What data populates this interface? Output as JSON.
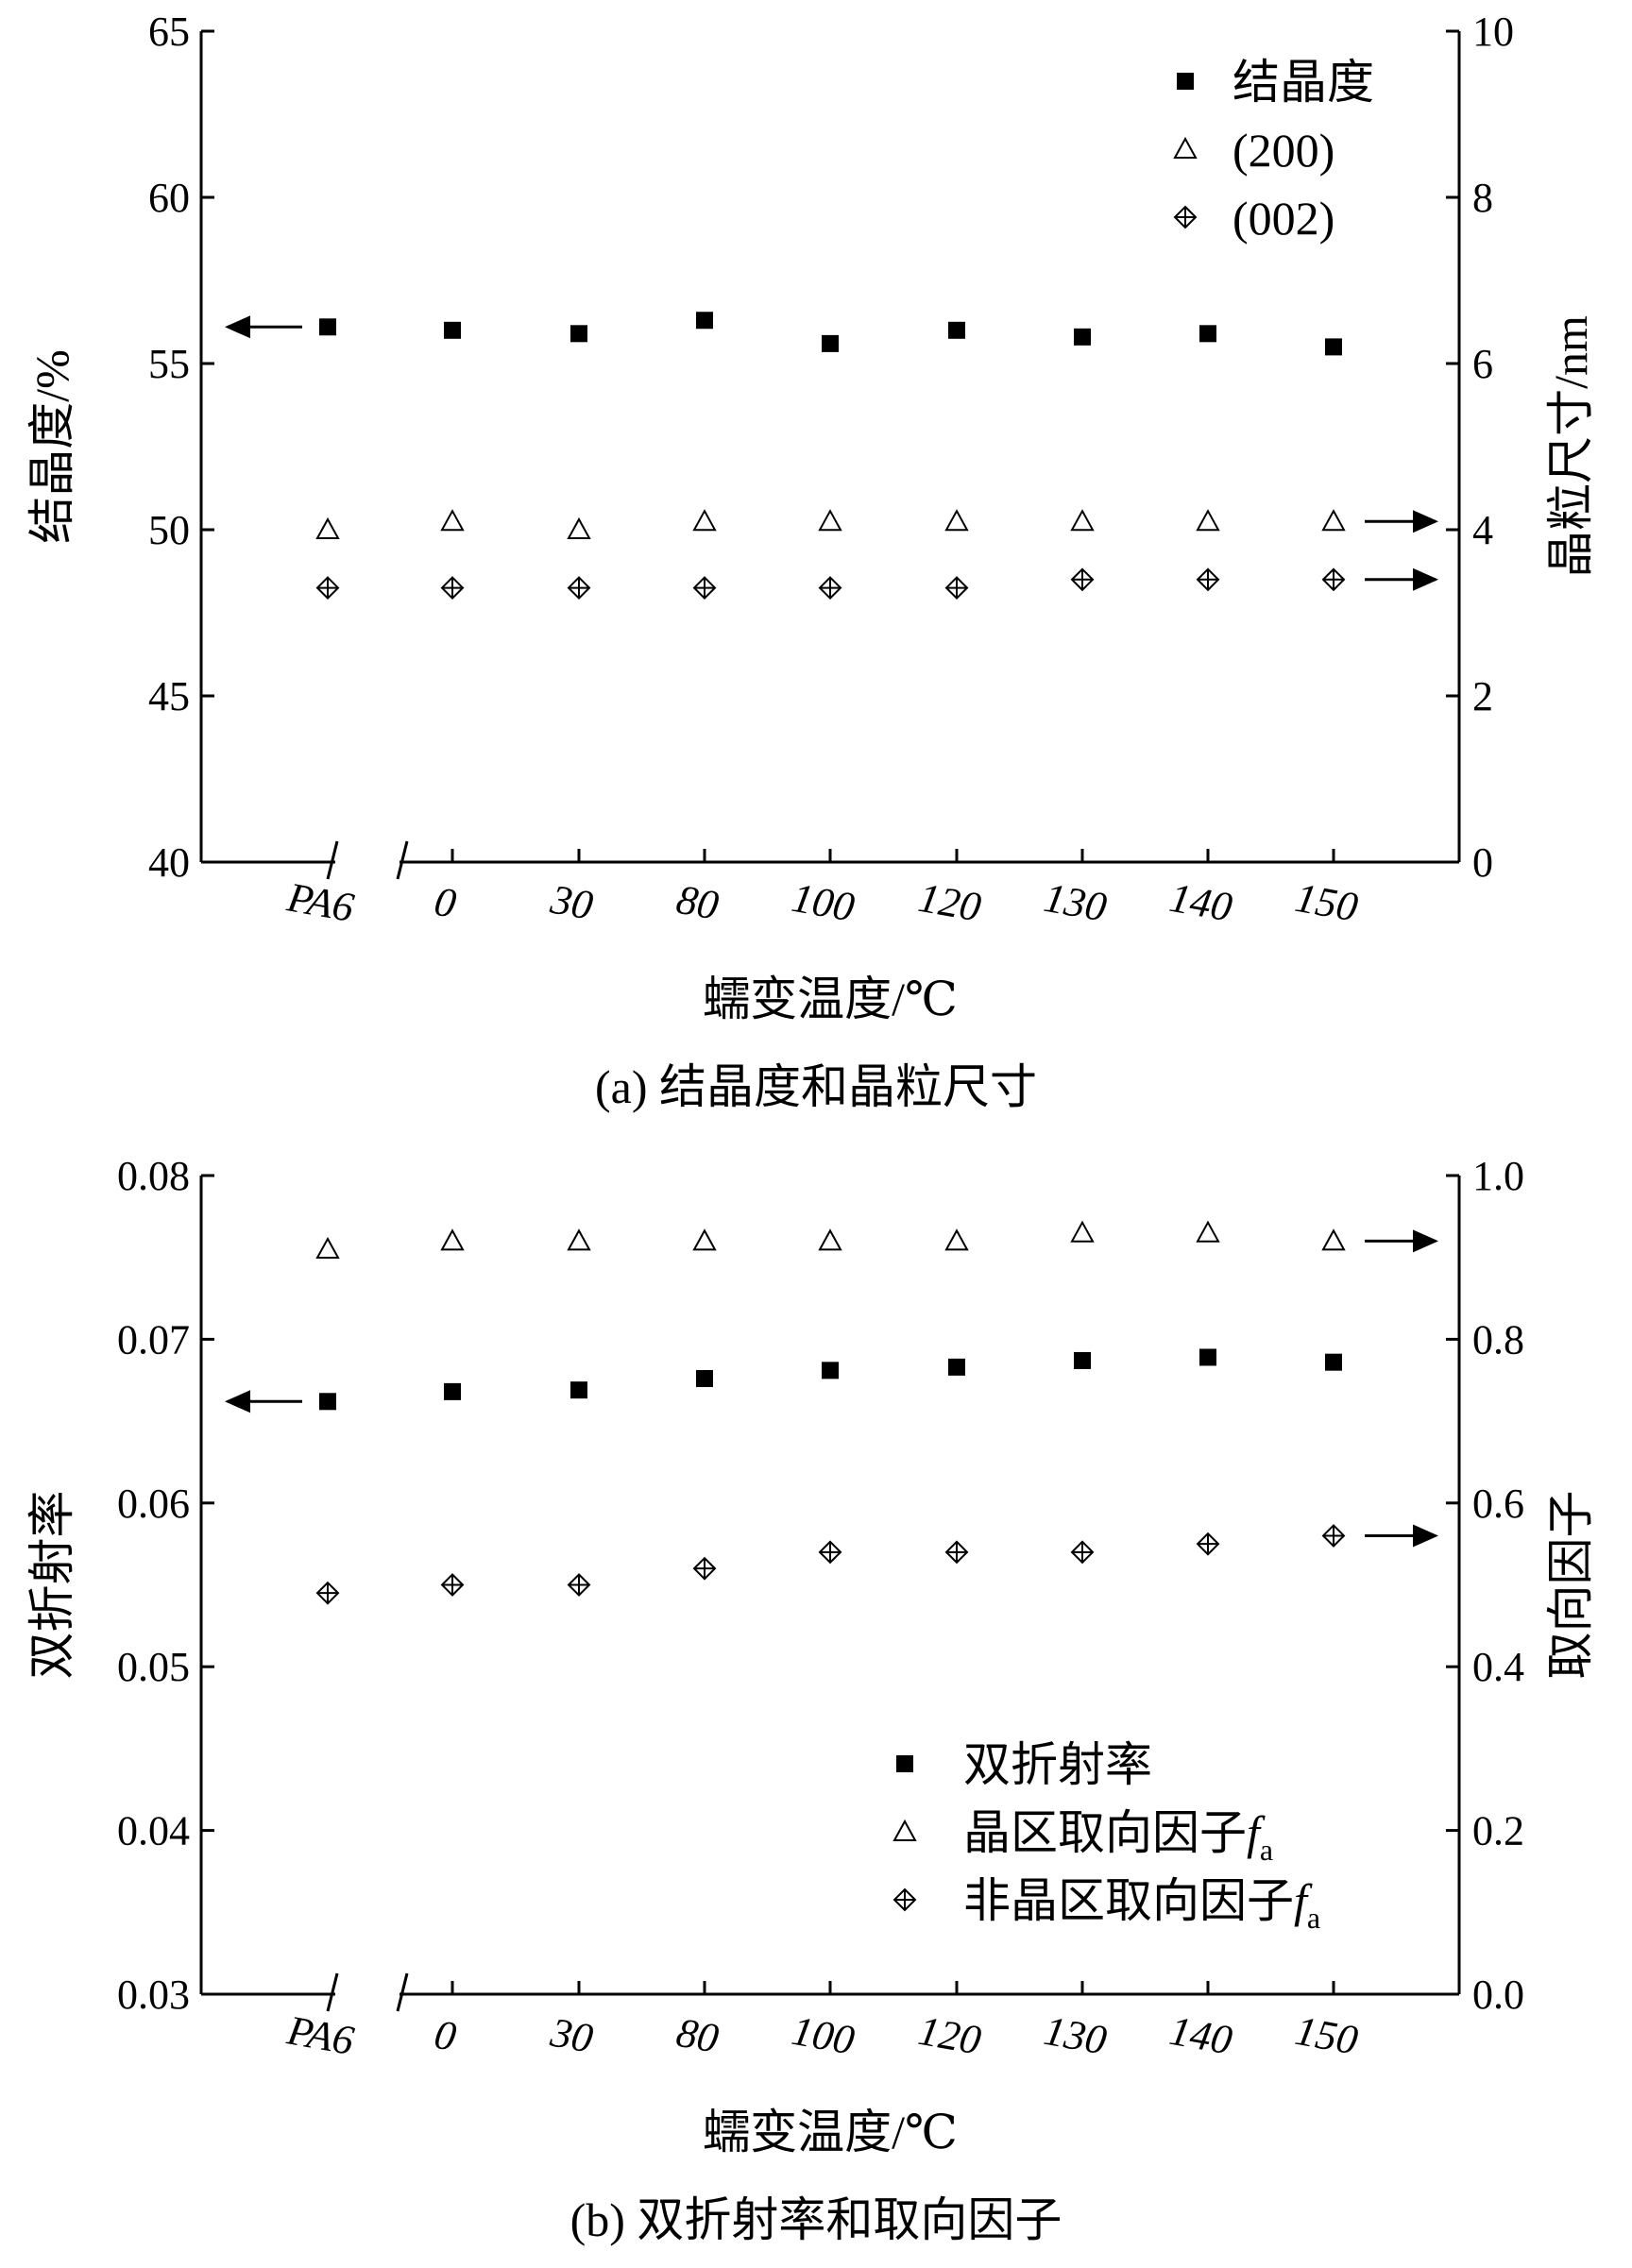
{
  "chart_data": [
    {
      "type": "scatter",
      "caption": "(a) 结晶度和晶粒尺寸",
      "xlabel": "蠕变温度/℃",
      "categories": [
        "PA6",
        "0",
        "30",
        "80",
        "100",
        "120",
        "130",
        "140",
        "150"
      ],
      "x_axis_break": "between PA6 and 0",
      "y_left": {
        "label": "结晶度/%",
        "lim": [
          40,
          65
        ],
        "ticks": [
          "40",
          "45",
          "50",
          "55",
          "60",
          "65"
        ]
      },
      "y_right": {
        "label": "晶粒尺寸/nm",
        "lim": [
          0,
          10
        ],
        "ticks": [
          "0",
          "2",
          "4",
          "6",
          "8",
          "10"
        ]
      },
      "legend_position": "top-right",
      "series": [
        {
          "name": "结晶度",
          "marker": "filled-square",
          "axis": "left",
          "values": [
            56.1,
            56.0,
            55.9,
            56.3,
            55.6,
            56.0,
            55.8,
            55.9,
            55.5
          ]
        },
        {
          "name": "(200)",
          "marker": "open-triangle",
          "axis": "right",
          "values": [
            4.0,
            4.1,
            4.0,
            4.1,
            4.1,
            4.1,
            4.1,
            4.1,
            4.1
          ]
        },
        {
          "name": "(002)",
          "marker": "crossed-diamond",
          "axis": "right",
          "values": [
            3.3,
            3.3,
            3.3,
            3.3,
            3.3,
            3.3,
            3.4,
            3.4,
            3.4
          ]
        }
      ]
    },
    {
      "type": "scatter",
      "caption": "(b) 双折射率和取向因子",
      "xlabel": "蠕变温度/℃",
      "categories": [
        "PA6",
        "0",
        "30",
        "80",
        "100",
        "120",
        "130",
        "140",
        "150"
      ],
      "x_axis_break": "between PA6 and 0",
      "y_left": {
        "label": "双折射率",
        "lim": [
          0.03,
          0.08
        ],
        "ticks": [
          "0.03",
          "0.04",
          "0.05",
          "0.06",
          "0.07",
          "0.08"
        ]
      },
      "y_right": {
        "label": "取向因子",
        "lim": [
          0.0,
          1.0
        ],
        "ticks": [
          "0.0",
          "0.2",
          "0.4",
          "0.6",
          "0.8",
          "1.0"
        ]
      },
      "legend_position": "bottom-right",
      "series": [
        {
          "name": "双折射率",
          "marker": "filled-square",
          "axis": "left",
          "values": [
            0.0662,
            0.0668,
            0.0669,
            0.0676,
            0.0681,
            0.0683,
            0.0687,
            0.0689,
            0.0686
          ]
        },
        {
          "name": "晶区取向因子",
          "name_italic": "f",
          "name_sub": "a",
          "marker": "open-triangle",
          "axis": "right",
          "values": [
            0.91,
            0.92,
            0.92,
            0.92,
            0.92,
            0.92,
            0.93,
            0.93,
            0.92
          ]
        },
        {
          "name": "非晶区取向因子",
          "name_italic": "f",
          "name_sub": "a",
          "marker": "crossed-diamond",
          "axis": "right",
          "values": [
            0.49,
            0.5,
            0.5,
            0.52,
            0.54,
            0.54,
            0.54,
            0.55,
            0.56
          ]
        }
      ]
    }
  ]
}
